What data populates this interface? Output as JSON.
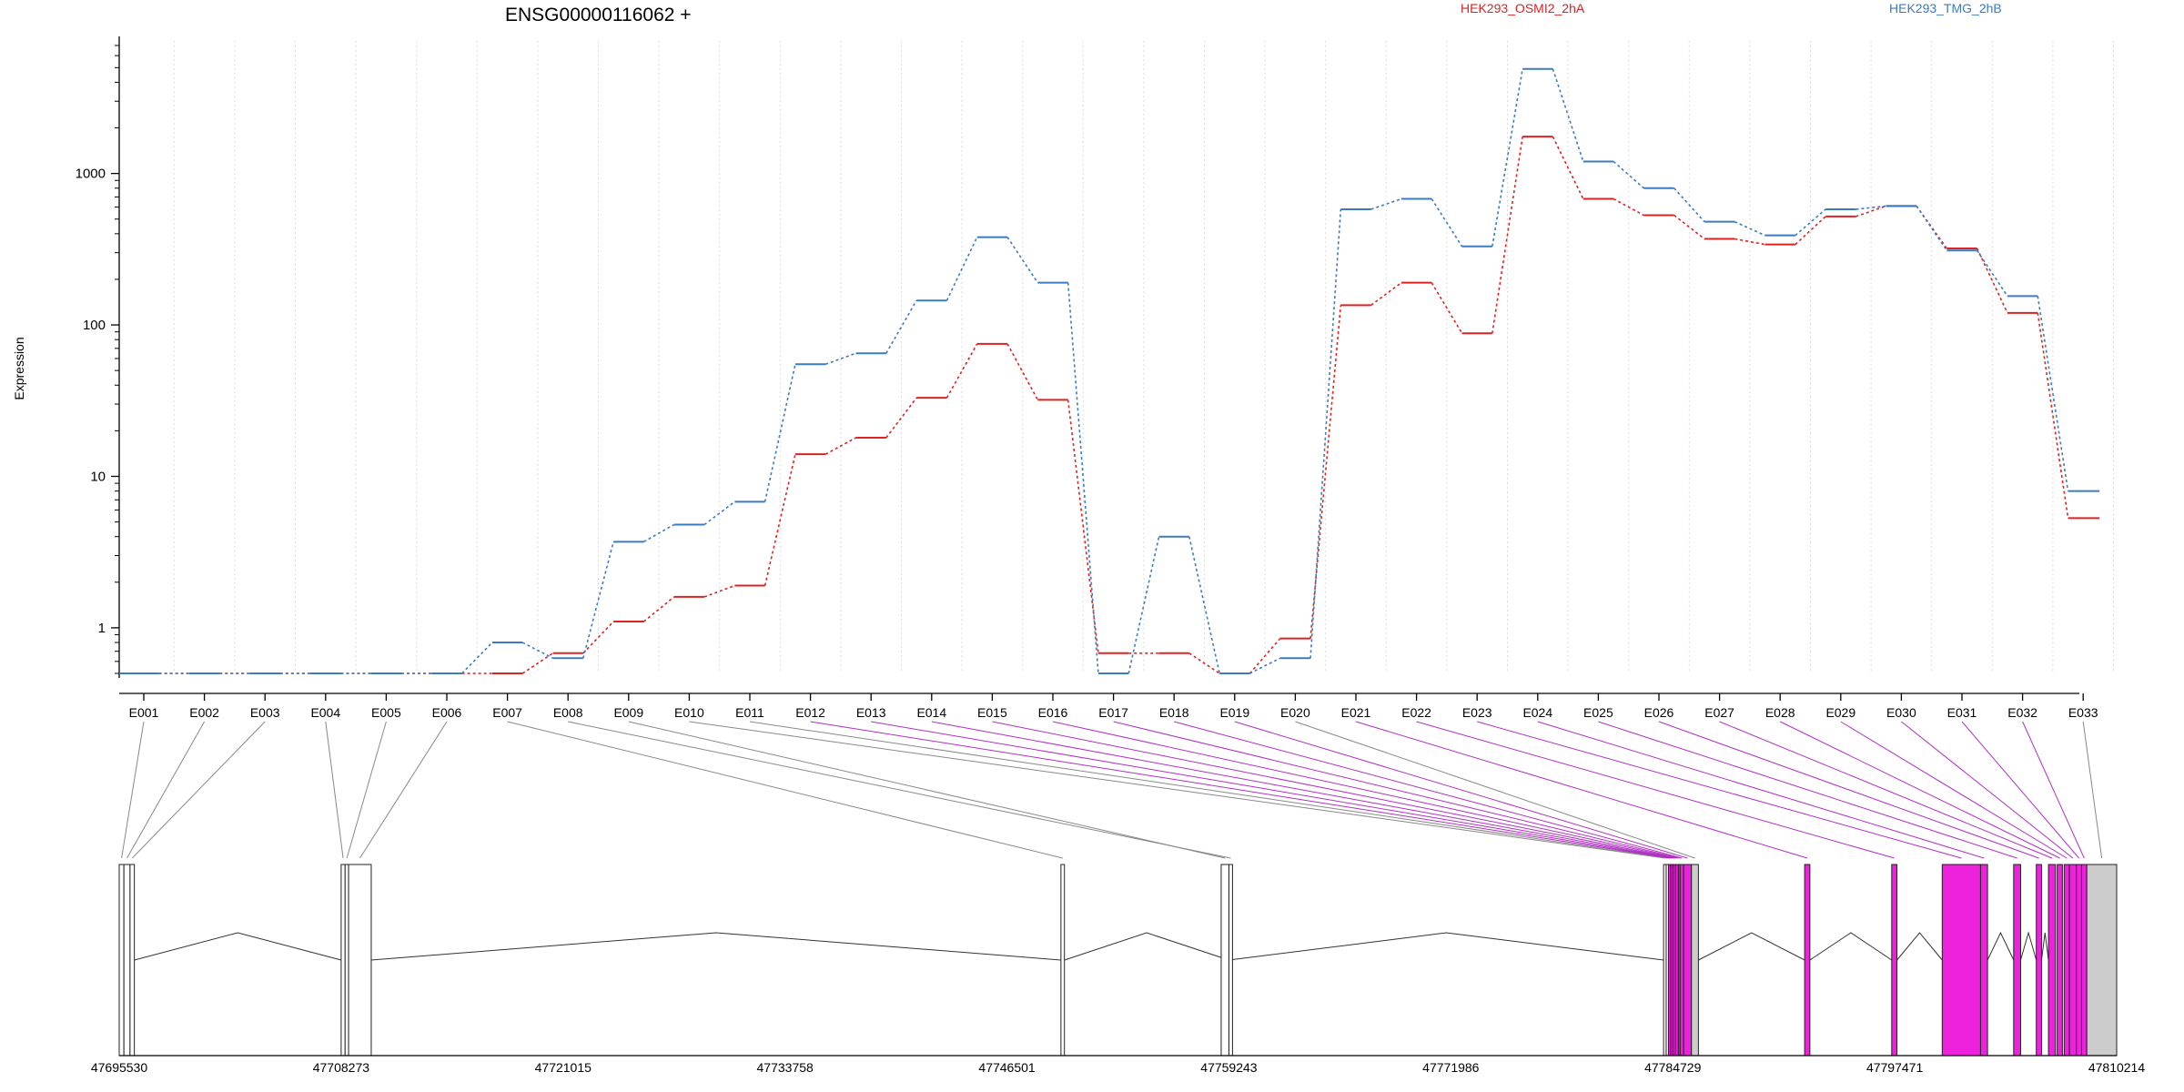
{
  "chart_data": {
    "type": "line",
    "title": "ENSG00000116062 +",
    "xlabel": "",
    "ylabel": "Expression",
    "y_scale": "log",
    "ylim": [
      0.5,
      7500
    ],
    "y_ticks": [
      1,
      10,
      100,
      1000
    ],
    "y_tick_labels": [
      "1",
      "10",
      "100",
      "1000"
    ],
    "grid": "vertical dotted",
    "legend_placement": "top",
    "categories": [
      "E001",
      "E002",
      "E003",
      "E004",
      "E005",
      "E006",
      "E007",
      "E008",
      "E009",
      "E010",
      "E011",
      "E012",
      "E013",
      "E014",
      "E015",
      "E016",
      "E017",
      "E018",
      "E019",
      "E020",
      "E021",
      "E022",
      "E023",
      "E024",
      "E025",
      "E026",
      "E027",
      "E028",
      "E029",
      "E030",
      "E031",
      "E032",
      "E033"
    ],
    "series": [
      {
        "name": "HEK293_OSMI2_2hA",
        "color": "#dd2222",
        "values": [
          0.5,
          0.5,
          0.5,
          0.5,
          0.5,
          0.5,
          0.5,
          0.68,
          1.1,
          1.6,
          1.9,
          14,
          18,
          33,
          75,
          32,
          0.68,
          0.68,
          0.5,
          0.85,
          135,
          190,
          88,
          1750,
          680,
          530,
          370,
          340,
          520,
          610,
          320,
          120,
          5.3
        ]
      },
      {
        "name": "HEK293_TMG_2hB",
        "color": "#3b7bbf",
        "values": [
          0.5,
          0.5,
          0.5,
          0.5,
          0.5,
          0.5,
          0.8,
          0.63,
          3.7,
          4.8,
          6.8,
          55,
          65,
          145,
          380,
          190,
          0.5,
          4,
          0.5,
          0.63,
          580,
          680,
          330,
          4900,
          1200,
          800,
          480,
          390,
          580,
          610,
          310,
          155,
          8
        ]
      }
    ],
    "gene_model": {
      "start_label": "47695530",
      "end_label": "47810214",
      "coordinate_ticks": [
        "47695530",
        "47708273",
        "47721015",
        "47733758",
        "47746501",
        "47759243",
        "47771986",
        "47784729",
        "47797471",
        "47810214"
      ],
      "exon_highlight_color": "#ee22dd",
      "exon_plain_color": "#cccccc",
      "highlighted_exons": [
        "E012",
        "E013",
        "E014",
        "E015",
        "E016",
        "E017",
        "E018",
        "E019",
        "E021",
        "E022",
        "E023",
        "E024",
        "E025",
        "E026",
        "E027",
        "E028",
        "E029",
        "E030",
        "E031",
        "E032"
      ]
    }
  }
}
